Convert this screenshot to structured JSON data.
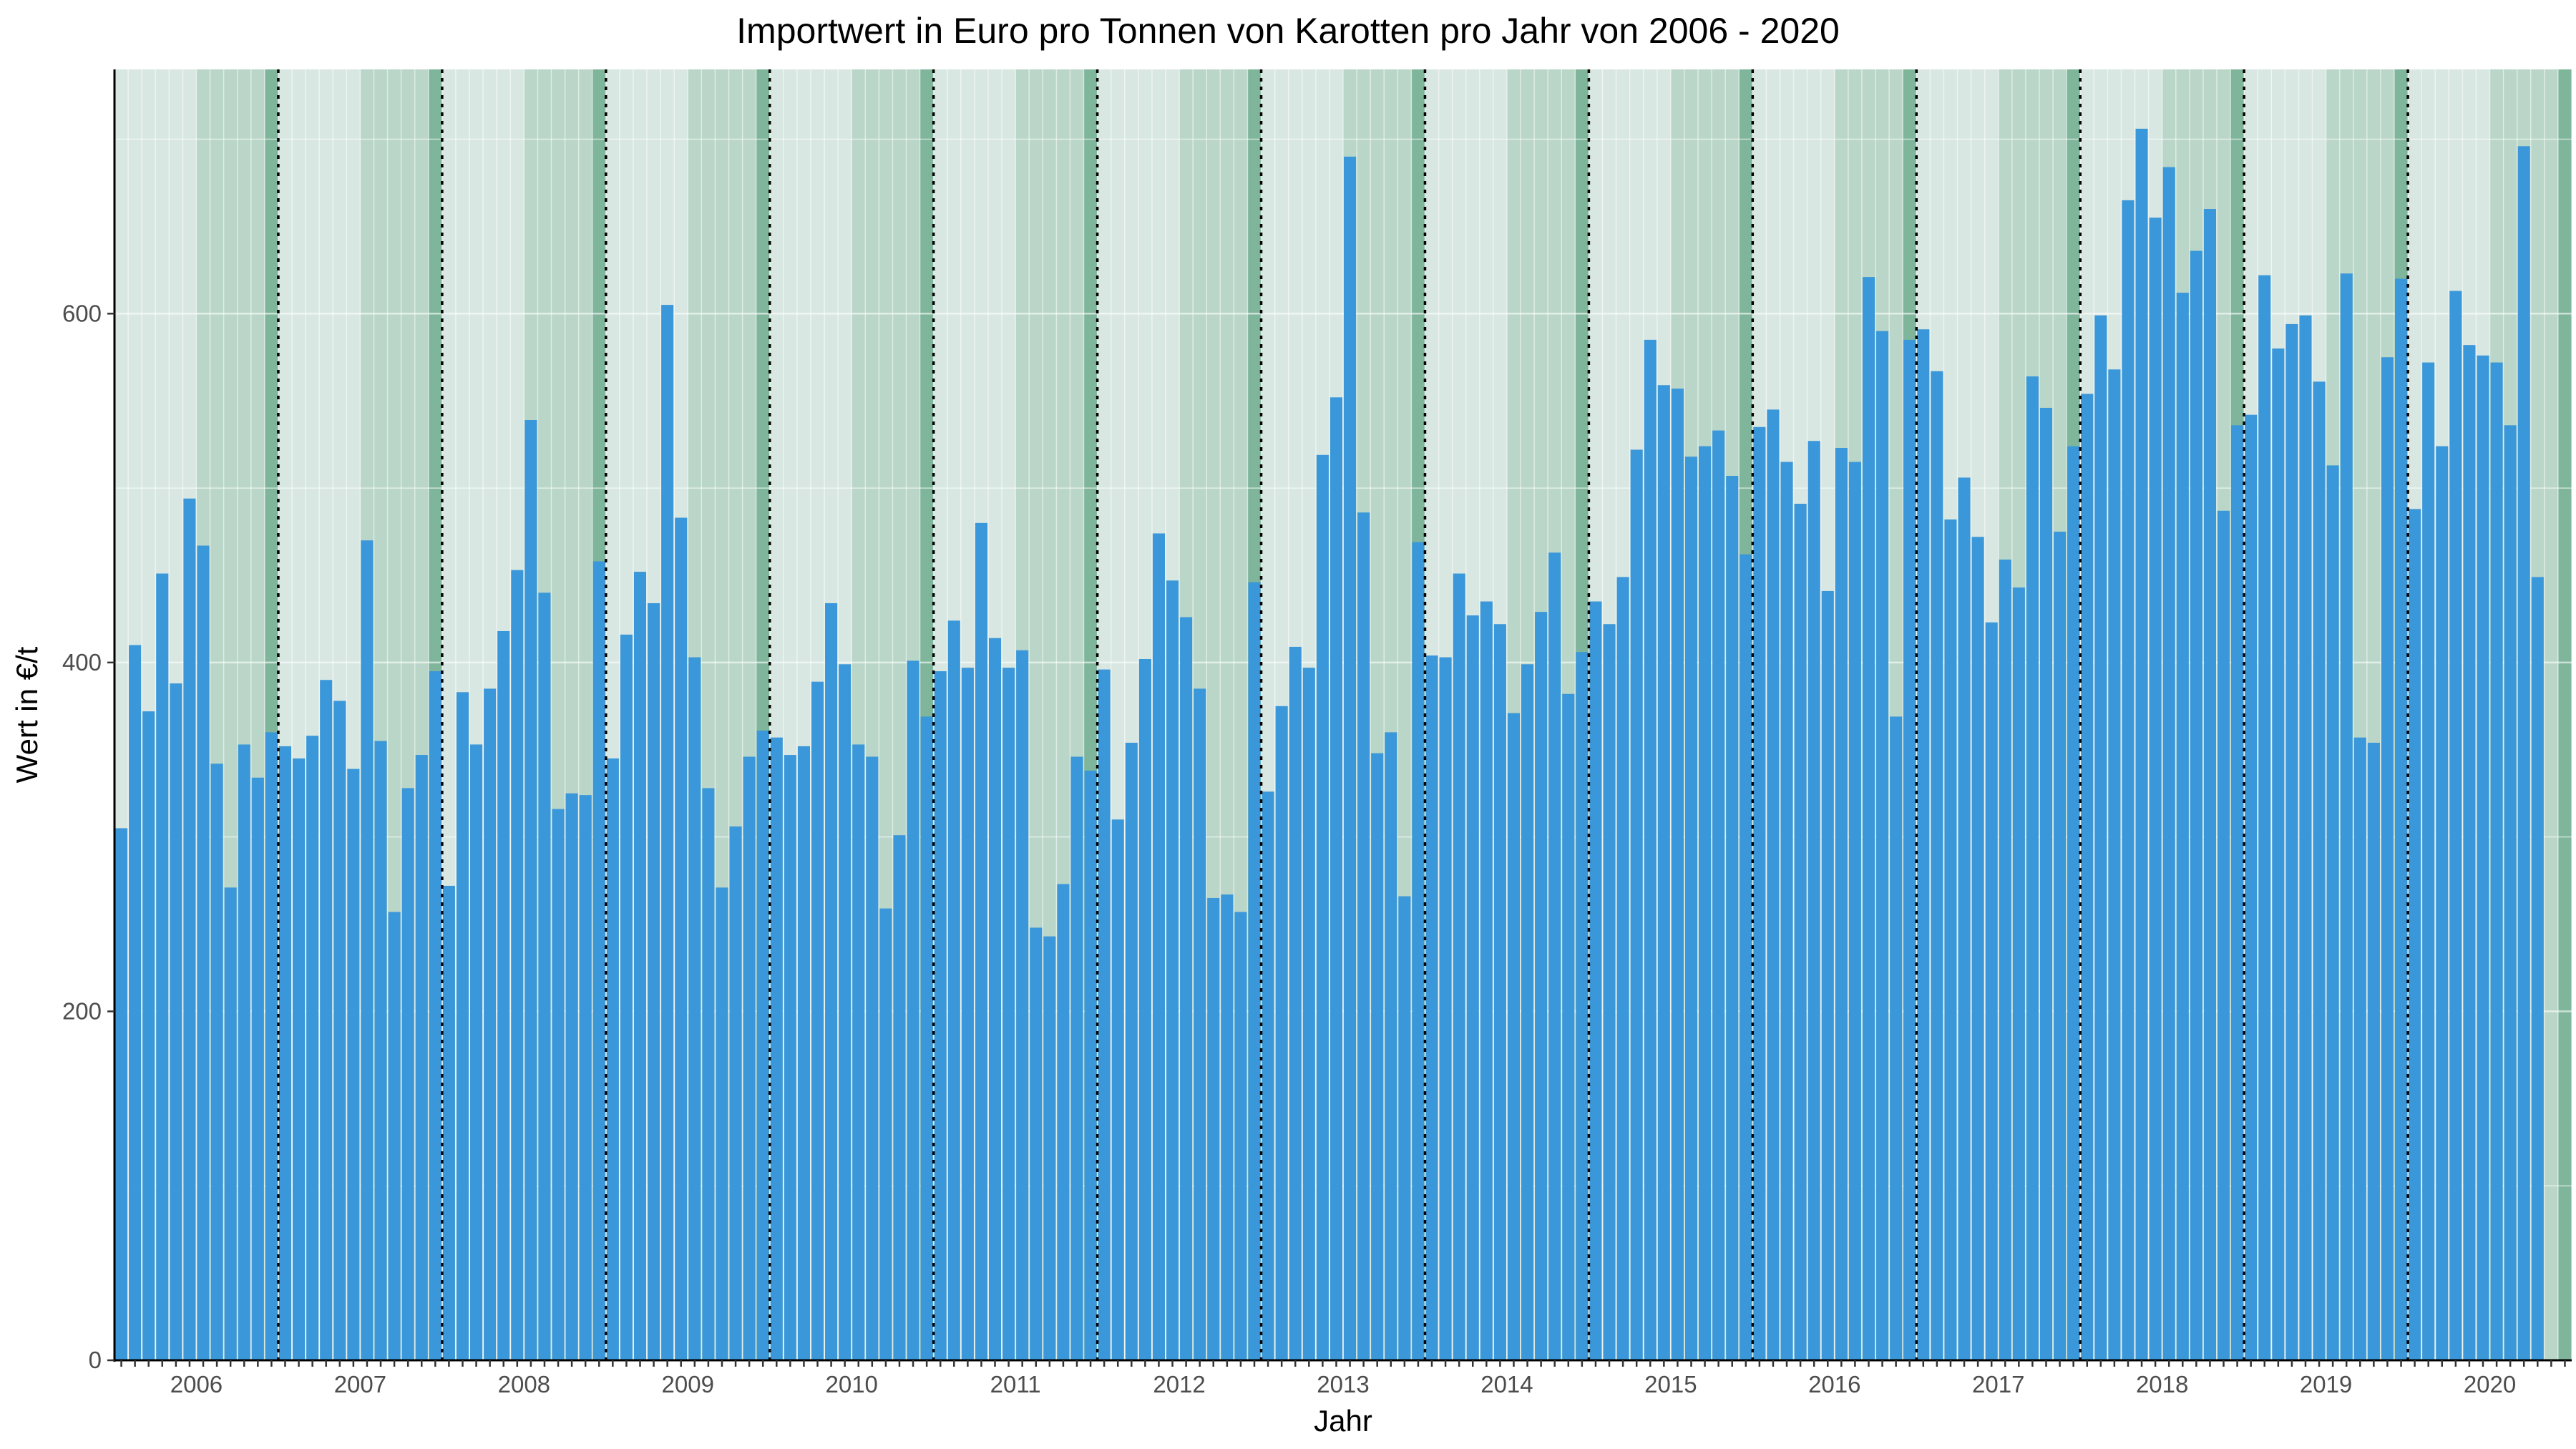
{
  "chart_data": {
    "type": "bar",
    "title": "Importwert in Euro pro Tonnen von Karotten pro Jahr von 2006 - 2020",
    "xlabel": "Jahr",
    "ylabel": "Wert in €/t",
    "ylim": [
      0,
      740
    ],
    "yticks": [
      0,
      200,
      400,
      600
    ],
    "grid": "on",
    "legend": "none",
    "start_month": "2006-01",
    "years": [
      "2006",
      "2007",
      "2008",
      "2009",
      "2010",
      "2011",
      "2012",
      "2013",
      "2014",
      "2015",
      "2016",
      "2017",
      "2018",
      "2019",
      "2020"
    ],
    "colors": {
      "bar": "#3a97d9",
      "band_light": "#d8e7e2",
      "band_mid": "#b9d6c8",
      "band_dark": "#7fb59b",
      "year_divider": "#000000",
      "axis": "#000000",
      "gridline": "#ffffff",
      "tick_text": "#4d4d4d"
    },
    "series": [
      {
        "values": [
          305,
          410,
          372,
          451,
          388,
          494,
          467,
          342,
          271,
          353,
          334,
          360,
          352,
          345,
          358,
          390,
          378,
          339,
          470,
          355,
          257,
          328,
          347,
          395,
          272,
          383,
          353,
          385,
          418,
          453,
          539,
          440,
          316,
          325,
          324,
          458,
          345,
          416,
          452,
          434,
          605,
          483,
          403,
          328,
          271,
          306,
          346,
          361,
          357,
          347,
          352,
          389,
          434,
          399,
          353,
          346,
          259,
          301,
          401,
          369,
          395,
          424,
          397,
          480,
          414,
          397,
          407,
          248,
          243,
          273,
          346,
          338,
          396,
          310,
          354,
          402,
          474,
          447,
          426,
          385,
          265,
          267,
          257,
          446,
          326,
          375,
          409,
          397,
          519,
          552,
          690,
          486,
          348,
          360,
          266,
          469,
          404,
          403,
          451,
          427,
          435,
          422,
          371,
          399,
          429,
          463,
          382,
          406,
          435,
          422,
          449,
          522,
          585,
          559,
          557,
          518,
          524,
          533,
          507,
          462,
          535,
          545,
          515,
          491,
          527,
          441,
          523,
          515,
          621,
          590,
          369,
          585,
          591,
          567,
          482,
          506,
          472,
          423,
          459,
          443,
          564,
          546,
          475,
          524,
          554,
          599,
          568,
          665,
          706,
          655,
          684,
          612,
          636,
          660,
          487,
          536,
          542,
          622,
          580,
          594,
          599,
          561,
          513,
          623,
          357,
          354,
          575,
          620,
          488,
          572,
          524,
          613,
          582,
          576,
          572,
          536,
          696,
          449
        ]
      }
    ]
  }
}
